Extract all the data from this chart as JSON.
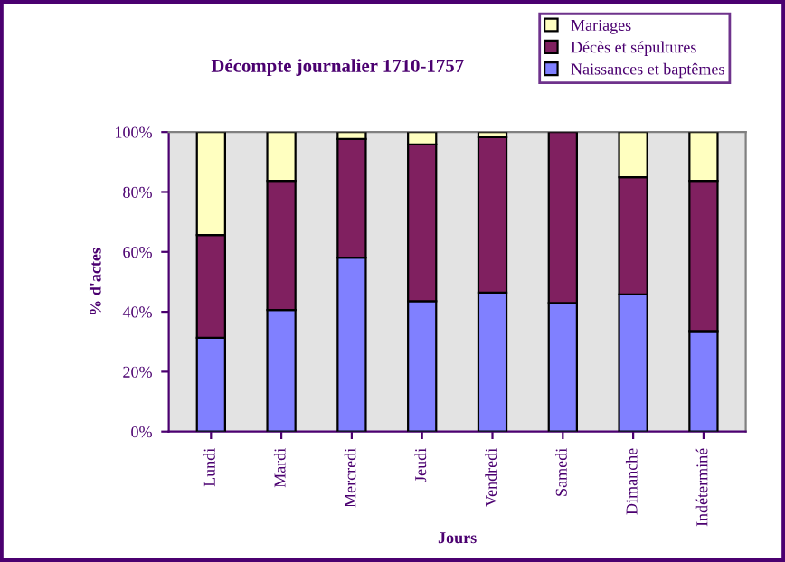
{
  "chart_data": {
    "type": "bar",
    "stacked": true,
    "title": "Décompte journalier 1710-1757",
    "xlabel": "Jours",
    "ylabel": "% d'actes",
    "categories": [
      "Lundi",
      "Mardi",
      "Mercredi",
      "Jeudi",
      "Vendredi",
      "Samedi",
      "Dimanche",
      "Indéterminé"
    ],
    "series": [
      {
        "name": "Naissances et baptêmes",
        "color": "#8080ff",
        "values": [
          31.3,
          40.6,
          58.1,
          43.5,
          46.4,
          42.9,
          45.8,
          33.6
        ]
      },
      {
        "name": "Décès et sépultures",
        "color": "#802060",
        "values": [
          34.3,
          43.1,
          39.6,
          52.4,
          51.9,
          57.1,
          39.1,
          50.1
        ]
      },
      {
        "name": "Mariages",
        "color": "#ffffc0",
        "values": [
          34.4,
          16.3,
          2.3,
          4.1,
          1.7,
          null,
          15.1,
          16.3
        ]
      }
    ],
    "ylim": [
      0,
      100
    ],
    "yticks": [
      {
        "value": 0,
        "label": "0%"
      },
      {
        "value": 20,
        "label": "20%"
      },
      {
        "value": 40,
        "label": "40%"
      },
      {
        "value": 60,
        "label": "60%"
      },
      {
        "value": 80,
        "label": "80%"
      },
      {
        "value": 100,
        "label": "100%"
      }
    ],
    "grid": false,
    "legend": "top right"
  }
}
